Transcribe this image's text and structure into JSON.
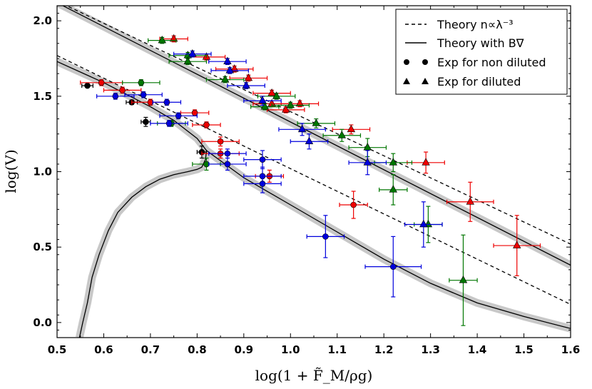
{
  "chart_data": {
    "type": "scatter",
    "xlabel": "log(1 + F̃_M/ρg)",
    "ylabel": "log(V)",
    "xlim": [
      0.5,
      1.6
    ],
    "ylim": [
      -0.1,
      2.1
    ],
    "xticks": [
      "0.5",
      "0.6",
      "0.7",
      "0.8",
      "0.9",
      "1.0",
      "1.1",
      "1.2",
      "1.3",
      "1.4",
      "1.5",
      "1.6"
    ],
    "yticks": [
      "0.0",
      "0.5",
      "1.0",
      "1.5",
      "2.0"
    ],
    "ytick_values": [
      0.0,
      0.5,
      1.0,
      1.5,
      2.0
    ],
    "grid": false,
    "legend_position": "top-right",
    "legend": [
      {
        "style": "dashed",
        "label": "Theory n∝λ⁻³"
      },
      {
        "style": "solid",
        "label": "Theory with B∇"
      },
      {
        "style": "circle",
        "label": "Exp for non diluted"
      },
      {
        "style": "triangle",
        "label": "Exp for diluted"
      }
    ],
    "colors": {
      "red": "#ee0000",
      "green": "#007700",
      "blue": "#0000dd",
      "black": "#000000",
      "band": "#c8c8c8"
    },
    "lines": [
      {
        "name": "theory-dashed-diluted",
        "style": "dashed",
        "x": [
          0.5,
          1.6
        ],
        "y": [
          2.13,
          0.52
        ]
      },
      {
        "name": "theory-solid-diluted",
        "style": "solid",
        "band": true,
        "x": [
          0.5,
          1.6
        ],
        "y": [
          2.12,
          0.38
        ]
      },
      {
        "name": "theory-dashed-non-diluted",
        "style": "dashed",
        "x": [
          0.5,
          1.6
        ],
        "y": [
          1.77,
          0.12
        ]
      },
      {
        "name": "theory-solid-non-diluted",
        "style": "solid",
        "band": true,
        "x": [
          0.5,
          0.6,
          0.7,
          0.75,
          0.8,
          0.82,
          0.9,
          1.0,
          1.1,
          1.2,
          1.3,
          1.4,
          1.5,
          1.6
        ],
        "y": [
          1.73,
          1.59,
          1.43,
          1.34,
          1.22,
          1.14,
          0.96,
          0.78,
          0.6,
          0.42,
          0.26,
          0.13,
          0.04,
          -0.04
        ]
      },
      {
        "name": "theory-solid-branch",
        "style": "solid",
        "band": true,
        "x": [
          0.82,
          0.818,
          0.81,
          0.8,
          0.78,
          0.75,
          0.72,
          0.69,
          0.66,
          0.63,
          0.61,
          0.59,
          0.575,
          0.565,
          0.555,
          0.548
        ],
        "y": [
          1.14,
          1.08,
          1.03,
          1.015,
          1.0,
          0.98,
          0.95,
          0.9,
          0.83,
          0.73,
          0.61,
          0.45,
          0.3,
          0.13,
          0.0,
          -0.1
        ]
      }
    ],
    "series": [
      {
        "name": "Exp for non diluted",
        "marker": "circle",
        "points": [
          {
            "c": "black",
            "x": 0.565,
            "y": 1.57,
            "xerr": 0.012,
            "yerr": 0.01
          },
          {
            "c": "black",
            "x": 0.66,
            "y": 1.46,
            "xerr": 0.012,
            "yerr": 0.015
          },
          {
            "c": "black",
            "x": 0.69,
            "y": 1.33,
            "xerr": 0.01,
            "yerr": 0.03
          },
          {
            "c": "black",
            "x": 0.81,
            "y": 1.13,
            "xerr": 0.01,
            "yerr": 0.04
          },
          {
            "c": "red",
            "x": 0.595,
            "y": 1.59,
            "xerr": 0.045,
            "yerr": 0.02
          },
          {
            "c": "red",
            "x": 0.64,
            "y": 1.54,
            "xerr": 0.04,
            "yerr": 0.02
          },
          {
            "c": "red",
            "x": 0.7,
            "y": 1.46,
            "xerr": 0.04,
            "yerr": 0.02
          },
          {
            "c": "red",
            "x": 0.795,
            "y": 1.39,
            "xerr": 0.03,
            "yerr": 0.02
          },
          {
            "c": "red",
            "x": 0.82,
            "y": 1.31,
            "xerr": 0.03,
            "yerr": 0.02
          },
          {
            "c": "red",
            "x": 0.85,
            "y": 1.2,
            "xerr": 0.04,
            "yerr": 0.03
          },
          {
            "c": "red",
            "x": 0.85,
            "y": 1.12,
            "xerr": 0.04,
            "yerr": 0.03
          },
          {
            "c": "red",
            "x": 0.955,
            "y": 0.97,
            "xerr": 0.03,
            "yerr": 0.04
          },
          {
            "c": "red",
            "x": 1.135,
            "y": 0.78,
            "xerr": 0.03,
            "yerr": 0.09
          },
          {
            "c": "green",
            "x": 0.68,
            "y": 1.59,
            "xerr": 0.04,
            "yerr": 0.02
          },
          {
            "c": "green",
            "x": 0.745,
            "y": 1.32,
            "xerr": 0.03,
            "yerr": 0.02
          },
          {
            "c": "green",
            "x": 0.82,
            "y": 1.05,
            "xerr": 0.03,
            "yerr": 0.04
          },
          {
            "c": "blue",
            "x": 0.625,
            "y": 1.5,
            "xerr": 0.04,
            "yerr": 0.02
          },
          {
            "c": "blue",
            "x": 0.685,
            "y": 1.51,
            "xerr": 0.04,
            "yerr": 0.02
          },
          {
            "c": "blue",
            "x": 0.735,
            "y": 1.46,
            "xerr": 0.03,
            "yerr": 0.02
          },
          {
            "c": "blue",
            "x": 0.76,
            "y": 1.37,
            "xerr": 0.04,
            "yerr": 0.02
          },
          {
            "c": "blue",
            "x": 0.74,
            "y": 1.32,
            "xerr": 0.04,
            "yerr": 0.02
          },
          {
            "c": "blue",
            "x": 0.865,
            "y": 1.12,
            "xerr": 0.04,
            "yerr": 0.03
          },
          {
            "c": "blue",
            "x": 0.865,
            "y": 1.05,
            "xerr": 0.04,
            "yerr": 0.04
          },
          {
            "c": "blue",
            "x": 0.94,
            "y": 1.08,
            "xerr": 0.04,
            "yerr": 0.06
          },
          {
            "c": "blue",
            "x": 0.94,
            "y": 0.97,
            "xerr": 0.04,
            "yerr": 0.06
          },
          {
            "c": "blue",
            "x": 0.94,
            "y": 0.92,
            "xerr": 0.04,
            "yerr": 0.06
          },
          {
            "c": "blue",
            "x": 1.075,
            "y": 0.57,
            "xerr": 0.04,
            "yerr": 0.14
          },
          {
            "c": "blue",
            "x": 1.22,
            "y": 0.37,
            "xerr": 0.06,
            "yerr": 0.2
          }
        ]
      },
      {
        "name": "Exp for diluted",
        "marker": "triangle",
        "points": [
          {
            "c": "red",
            "x": 0.75,
            "y": 1.88,
            "xerr": 0.03,
            "yerr": 0.02
          },
          {
            "c": "red",
            "x": 0.82,
            "y": 1.76,
            "xerr": 0.04,
            "yerr": 0.02
          },
          {
            "c": "red",
            "x": 0.88,
            "y": 1.68,
            "xerr": 0.04,
            "yerr": 0.02
          },
          {
            "c": "red",
            "x": 0.91,
            "y": 1.62,
            "xerr": 0.04,
            "yerr": 0.02
          },
          {
            "c": "red",
            "x": 0.96,
            "y": 1.52,
            "xerr": 0.04,
            "yerr": 0.02
          },
          {
            "c": "red",
            "x": 0.96,
            "y": 1.45,
            "xerr": 0.04,
            "yerr": 0.02
          },
          {
            "c": "red",
            "x": 0.99,
            "y": 1.41,
            "xerr": 0.04,
            "yerr": 0.02
          },
          {
            "c": "red",
            "x": 1.02,
            "y": 1.45,
            "xerr": 0.04,
            "yerr": 0.02
          },
          {
            "c": "red",
            "x": 1.13,
            "y": 1.28,
            "xerr": 0.04,
            "yerr": 0.03
          },
          {
            "c": "red",
            "x": 1.29,
            "y": 1.06,
            "xerr": 0.04,
            "yerr": 0.07
          },
          {
            "c": "red",
            "x": 1.385,
            "y": 0.8,
            "xerr": 0.05,
            "yerr": 0.13
          },
          {
            "c": "red",
            "x": 1.485,
            "y": 0.51,
            "xerr": 0.05,
            "yerr": 0.2
          },
          {
            "c": "green",
            "x": 0.725,
            "y": 1.87,
            "xerr": 0.03,
            "yerr": 0.02
          },
          {
            "c": "green",
            "x": 0.78,
            "y": 1.77,
            "xerr": 0.04,
            "yerr": 0.02
          },
          {
            "c": "green",
            "x": 0.78,
            "y": 1.73,
            "xerr": 0.04,
            "yerr": 0.02
          },
          {
            "c": "green",
            "x": 0.86,
            "y": 1.61,
            "xerr": 0.04,
            "yerr": 0.02
          },
          {
            "c": "green",
            "x": 0.945,
            "y": 1.43,
            "xerr": 0.03,
            "yerr": 0.02
          },
          {
            "c": "green",
            "x": 0.97,
            "y": 1.5,
            "xerr": 0.04,
            "yerr": 0.02
          },
          {
            "c": "green",
            "x": 1.0,
            "y": 1.44,
            "xerr": 0.04,
            "yerr": 0.02
          },
          {
            "c": "green",
            "x": 1.055,
            "y": 1.32,
            "xerr": 0.04,
            "yerr": 0.03
          },
          {
            "c": "green",
            "x": 1.11,
            "y": 1.24,
            "xerr": 0.04,
            "yerr": 0.04
          },
          {
            "c": "green",
            "x": 1.165,
            "y": 1.16,
            "xerr": 0.04,
            "yerr": 0.06
          },
          {
            "c": "green",
            "x": 1.22,
            "y": 1.06,
            "xerr": 0.04,
            "yerr": 0.06
          },
          {
            "c": "green",
            "x": 1.22,
            "y": 0.88,
            "xerr": 0.03,
            "yerr": 0.1
          },
          {
            "c": "green",
            "x": 1.295,
            "y": 0.65,
            "xerr": 0.03,
            "yerr": 0.12
          },
          {
            "c": "green",
            "x": 1.37,
            "y": 0.28,
            "xerr": 0.03,
            "yerr": 0.3
          },
          {
            "c": "blue",
            "x": 0.79,
            "y": 1.78,
            "xerr": 0.04,
            "yerr": 0.02
          },
          {
            "c": "blue",
            "x": 0.865,
            "y": 1.73,
            "xerr": 0.04,
            "yerr": 0.02
          },
          {
            "c": "blue",
            "x": 0.87,
            "y": 1.67,
            "xerr": 0.04,
            "yerr": 0.02
          },
          {
            "c": "blue",
            "x": 0.905,
            "y": 1.57,
            "xerr": 0.04,
            "yerr": 0.02
          },
          {
            "c": "blue",
            "x": 0.94,
            "y": 1.47,
            "xerr": 0.04,
            "yerr": 0.03
          },
          {
            "c": "blue",
            "x": 1.025,
            "y": 1.28,
            "xerr": 0.05,
            "yerr": 0.04
          },
          {
            "c": "blue",
            "x": 1.04,
            "y": 1.2,
            "xerr": 0.04,
            "yerr": 0.05
          },
          {
            "c": "blue",
            "x": 1.165,
            "y": 1.06,
            "xerr": 0.04,
            "yerr": 0.08
          },
          {
            "c": "blue",
            "x": 1.285,
            "y": 0.65,
            "xerr": 0.04,
            "yerr": 0.15
          }
        ]
      }
    ]
  }
}
